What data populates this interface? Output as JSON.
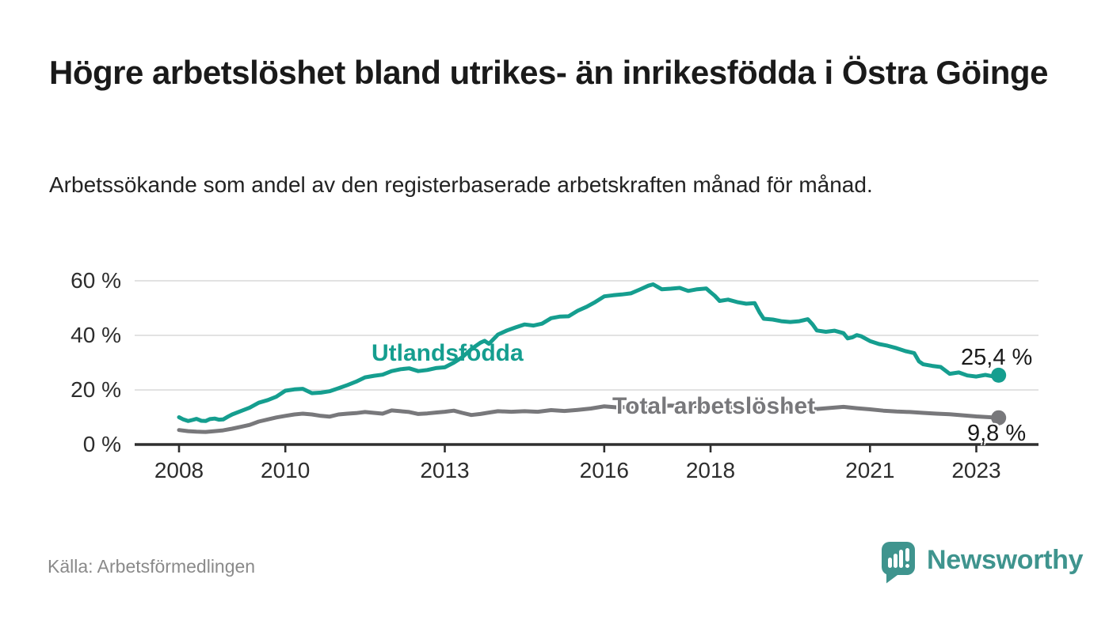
{
  "page": {
    "background": "#ffffff"
  },
  "header": {
    "title": "Högre arbetslöshet bland utrikes- än inrikesfödda i Östra Göinge",
    "subtitle": "Arbetssökande som andel av den registerbaserade arbetskraften månad för månad."
  },
  "footer": {
    "source": "Källa: Arbetsförmedlingen",
    "brand": "Newsworthy",
    "brand_icon": "newsworthy-speech-bubble-bar-chart-icon",
    "brand_color": "#3f948e"
  },
  "chart_data": {
    "type": "line",
    "title": "Högre arbetslöshet bland utrikes- än inrikesfödda i Östra Göinge",
    "subtitle": "Arbetssökande som andel av den registerbaserade arbetskraften månad för månad.",
    "xlabel": "",
    "ylabel": "",
    "x_unit": "year",
    "y_unit": "%",
    "xlim": [
      2007.17,
      2024.17
    ],
    "ylim": [
      0,
      62
    ],
    "grid": "horizontal",
    "legend_position": "inline-labels",
    "x_ticks": [
      {
        "value": 2008,
        "label": "2008"
      },
      {
        "value": 2010,
        "label": "2010"
      },
      {
        "value": 2013,
        "label": "2013"
      },
      {
        "value": 2016,
        "label": "2016"
      },
      {
        "value": 2018,
        "label": "2018"
      },
      {
        "value": 2021,
        "label": "2021"
      },
      {
        "value": 2023,
        "label": "2023"
      }
    ],
    "y_ticks": [
      {
        "value": 0,
        "label": "0 %"
      },
      {
        "value": 20,
        "label": "20 %"
      },
      {
        "value": 40,
        "label": "40 %"
      },
      {
        "value": 60,
        "label": "60 %"
      }
    ],
    "series": [
      {
        "name": "Utlandsfödda",
        "color": "#159e8f",
        "end_value": 25.4,
        "end_label": "25,4 %",
        "points": [
          [
            2008.0,
            10.0
          ],
          [
            2008.08,
            9.2
          ],
          [
            2008.17,
            8.6
          ],
          [
            2008.25,
            9.0
          ],
          [
            2008.33,
            9.4
          ],
          [
            2008.42,
            8.7
          ],
          [
            2008.5,
            8.6
          ],
          [
            2008.58,
            9.3
          ],
          [
            2008.67,
            9.5
          ],
          [
            2008.75,
            9.1
          ],
          [
            2008.83,
            9.2
          ],
          [
            2008.92,
            10.2
          ],
          [
            2009.0,
            11.0
          ],
          [
            2009.17,
            12.3
          ],
          [
            2009.33,
            13.5
          ],
          [
            2009.5,
            15.3
          ],
          [
            2009.67,
            16.3
          ],
          [
            2009.83,
            17.5
          ],
          [
            2010.0,
            19.7
          ],
          [
            2010.17,
            20.2
          ],
          [
            2010.33,
            20.4
          ],
          [
            2010.5,
            18.8
          ],
          [
            2010.67,
            19.0
          ],
          [
            2010.83,
            19.5
          ],
          [
            2011.0,
            20.6
          ],
          [
            2011.17,
            21.8
          ],
          [
            2011.33,
            23.0
          ],
          [
            2011.5,
            24.6
          ],
          [
            2011.67,
            25.2
          ],
          [
            2011.83,
            25.6
          ],
          [
            2012.0,
            26.9
          ],
          [
            2012.17,
            27.6
          ],
          [
            2012.33,
            27.9
          ],
          [
            2012.5,
            26.9
          ],
          [
            2012.67,
            27.3
          ],
          [
            2012.83,
            28.0
          ],
          [
            2013.0,
            28.3
          ],
          [
            2013.17,
            30.0
          ],
          [
            2013.33,
            32.0
          ],
          [
            2013.5,
            35.0
          ],
          [
            2013.67,
            37.3
          ],
          [
            2013.75,
            38.0
          ],
          [
            2013.83,
            36.9
          ],
          [
            2014.0,
            40.3
          ],
          [
            2014.17,
            41.8
          ],
          [
            2014.33,
            42.9
          ],
          [
            2014.5,
            44.0
          ],
          [
            2014.67,
            43.6
          ],
          [
            2014.83,
            44.3
          ],
          [
            2015.0,
            46.3
          ],
          [
            2015.17,
            46.9
          ],
          [
            2015.33,
            47.0
          ],
          [
            2015.5,
            49.0
          ],
          [
            2015.67,
            50.5
          ],
          [
            2015.83,
            52.2
          ],
          [
            2016.0,
            54.3
          ],
          [
            2016.17,
            54.7
          ],
          [
            2016.33,
            55.0
          ],
          [
            2016.5,
            55.4
          ],
          [
            2016.67,
            56.8
          ],
          [
            2016.83,
            58.2
          ],
          [
            2016.92,
            58.7
          ],
          [
            2017.0,
            57.8
          ],
          [
            2017.08,
            56.9
          ],
          [
            2017.25,
            57.1
          ],
          [
            2017.42,
            57.4
          ],
          [
            2017.58,
            56.3
          ],
          [
            2017.75,
            56.9
          ],
          [
            2017.92,
            57.2
          ],
          [
            2018.0,
            55.8
          ],
          [
            2018.08,
            54.5
          ],
          [
            2018.17,
            52.6
          ],
          [
            2018.33,
            53.1
          ],
          [
            2018.5,
            52.2
          ],
          [
            2018.67,
            51.6
          ],
          [
            2018.83,
            51.8
          ],
          [
            2018.92,
            48.5
          ],
          [
            2019.0,
            46.1
          ],
          [
            2019.17,
            45.8
          ],
          [
            2019.33,
            45.2
          ],
          [
            2019.5,
            44.9
          ],
          [
            2019.67,
            45.2
          ],
          [
            2019.83,
            45.9
          ],
          [
            2019.92,
            44.0
          ],
          [
            2020.0,
            41.8
          ],
          [
            2020.17,
            41.3
          ],
          [
            2020.33,
            41.7
          ],
          [
            2020.5,
            40.8
          ],
          [
            2020.58,
            38.9
          ],
          [
            2020.67,
            39.3
          ],
          [
            2020.75,
            40.1
          ],
          [
            2020.83,
            39.7
          ],
          [
            2021.0,
            37.9
          ],
          [
            2021.17,
            36.8
          ],
          [
            2021.33,
            36.2
          ],
          [
            2021.5,
            35.3
          ],
          [
            2021.67,
            34.2
          ],
          [
            2021.83,
            33.5
          ],
          [
            2021.92,
            30.5
          ],
          [
            2022.0,
            29.4
          ],
          [
            2022.17,
            28.8
          ],
          [
            2022.33,
            28.4
          ],
          [
            2022.5,
            25.9
          ],
          [
            2022.67,
            26.4
          ],
          [
            2022.83,
            25.3
          ],
          [
            2023.0,
            24.9
          ],
          [
            2023.17,
            25.5
          ],
          [
            2023.33,
            24.9
          ],
          [
            2023.42,
            25.4
          ]
        ]
      },
      {
        "name": "Total arbetslöshet",
        "color": "#78787b",
        "end_value": 9.8,
        "end_label": "9,8 %",
        "points": [
          [
            2008.0,
            5.3
          ],
          [
            2008.17,
            4.9
          ],
          [
            2008.33,
            4.7
          ],
          [
            2008.5,
            4.6
          ],
          [
            2008.67,
            4.9
          ],
          [
            2008.83,
            5.2
          ],
          [
            2009.0,
            5.8
          ],
          [
            2009.17,
            6.5
          ],
          [
            2009.33,
            7.2
          ],
          [
            2009.5,
            8.4
          ],
          [
            2009.67,
            9.2
          ],
          [
            2009.83,
            9.9
          ],
          [
            2010.0,
            10.5
          ],
          [
            2010.17,
            11.0
          ],
          [
            2010.33,
            11.3
          ],
          [
            2010.5,
            11.0
          ],
          [
            2010.67,
            10.5
          ],
          [
            2010.83,
            10.2
          ],
          [
            2011.0,
            11.0
          ],
          [
            2011.17,
            11.3
          ],
          [
            2011.33,
            11.5
          ],
          [
            2011.5,
            11.9
          ],
          [
            2011.67,
            11.6
          ],
          [
            2011.83,
            11.3
          ],
          [
            2012.0,
            12.5
          ],
          [
            2012.17,
            12.2
          ],
          [
            2012.33,
            11.9
          ],
          [
            2012.5,
            11.2
          ],
          [
            2012.67,
            11.4
          ],
          [
            2012.83,
            11.7
          ],
          [
            2013.0,
            12.0
          ],
          [
            2013.17,
            12.4
          ],
          [
            2013.33,
            11.6
          ],
          [
            2013.5,
            10.8
          ],
          [
            2013.67,
            11.2
          ],
          [
            2013.83,
            11.7
          ],
          [
            2014.0,
            12.2
          ],
          [
            2014.25,
            12.0
          ],
          [
            2014.5,
            12.2
          ],
          [
            2014.75,
            12.0
          ],
          [
            2015.0,
            12.6
          ],
          [
            2015.25,
            12.3
          ],
          [
            2015.5,
            12.7
          ],
          [
            2015.75,
            13.2
          ],
          [
            2016.0,
            14.0
          ],
          [
            2016.25,
            13.6
          ],
          [
            2016.5,
            13.8
          ],
          [
            2016.75,
            14.1
          ],
          [
            2017.0,
            14.0
          ],
          [
            2017.25,
            14.3
          ],
          [
            2017.5,
            13.9
          ],
          [
            2017.75,
            14.1
          ],
          [
            2018.0,
            13.8
          ],
          [
            2018.25,
            13.5
          ],
          [
            2018.5,
            13.7
          ],
          [
            2018.75,
            13.4
          ],
          [
            2019.0,
            13.2
          ],
          [
            2019.25,
            13.0
          ],
          [
            2019.5,
            13.3
          ],
          [
            2019.75,
            13.1
          ],
          [
            2020.0,
            13.0
          ],
          [
            2020.25,
            13.4
          ],
          [
            2020.5,
            13.8
          ],
          [
            2020.75,
            13.3
          ],
          [
            2021.0,
            12.9
          ],
          [
            2021.25,
            12.4
          ],
          [
            2021.5,
            12.1
          ],
          [
            2021.75,
            11.9
          ],
          [
            2022.0,
            11.6
          ],
          [
            2022.25,
            11.3
          ],
          [
            2022.5,
            11.1
          ],
          [
            2022.75,
            10.7
          ],
          [
            2023.0,
            10.3
          ],
          [
            2023.25,
            10.0
          ],
          [
            2023.42,
            9.8
          ]
        ]
      }
    ],
    "colors": {
      "grid": "#d9d9d9",
      "axis": "#2f2f2f",
      "tick_text": "#2d2d2d",
      "value_label_text": "#1a1a1a"
    }
  }
}
